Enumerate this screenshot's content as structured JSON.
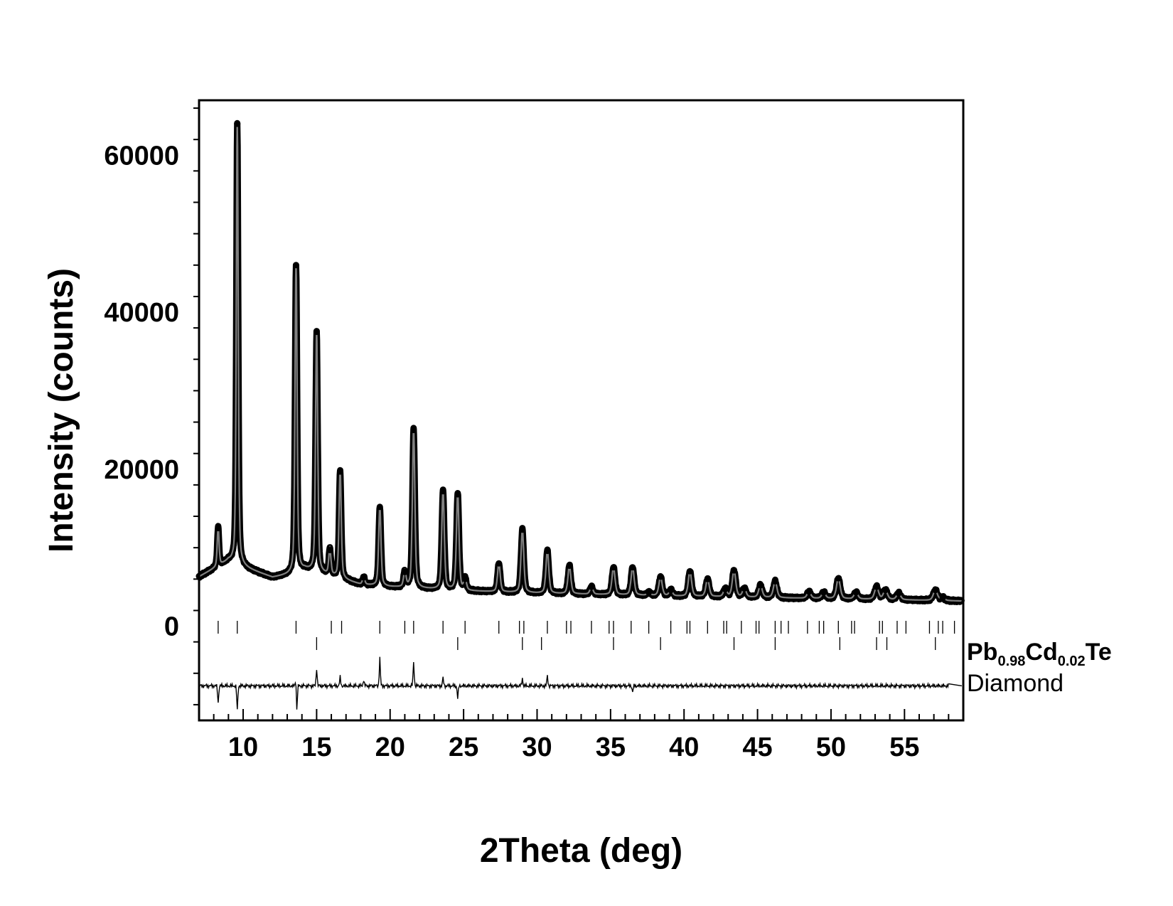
{
  "chart_data": {
    "type": "line",
    "xlabel": "2Theta (deg)",
    "ylabel": "Intensity (counts)",
    "xlim": [
      7,
      59
    ],
    "ylim": [
      -12000,
      67000
    ],
    "x_ticks": [
      "10",
      "15",
      "20",
      "25",
      "30",
      "35",
      "40",
      "45",
      "50",
      "55"
    ],
    "x_tick_values": [
      10,
      15,
      20,
      25,
      30,
      35,
      40,
      45,
      50,
      55
    ],
    "y_ticks": [
      "0",
      "20000",
      "40000",
      "60000"
    ],
    "y_tick_values": [
      0,
      20000,
      40000,
      60000
    ],
    "grid": false,
    "legend": "none",
    "background": {
      "points": [
        [
          7,
          6300
        ],
        [
          9,
          8300
        ],
        [
          10.5,
          7200
        ],
        [
          12,
          6200
        ],
        [
          13.3,
          6600
        ],
        [
          14.2,
          7200
        ],
        [
          16,
          6400
        ],
        [
          18,
          5300
        ],
        [
          20,
          5000
        ],
        [
          25,
          4500
        ],
        [
          30,
          4200
        ],
        [
          35,
          4000
        ],
        [
          40,
          3800
        ],
        [
          45,
          3650
        ],
        [
          50,
          3500
        ],
        [
          55,
          3350
        ],
        [
          59,
          3200
        ]
      ]
    },
    "peaks": [
      {
        "x": 8.3,
        "y": 12500
      },
      {
        "x": 9.6,
        "y": 64000
      },
      {
        "x": 13.6,
        "y": 46000
      },
      {
        "x": 15.0,
        "y": 37500
      },
      {
        "x": 15.9,
        "y": 9700
      },
      {
        "x": 16.6,
        "y": 19700
      },
      {
        "x": 18.2,
        "y": 6200
      },
      {
        "x": 19.3,
        "y": 15200
      },
      {
        "x": 21.0,
        "y": 6900
      },
      {
        "x": 21.6,
        "y": 25000
      },
      {
        "x": 23.6,
        "y": 17200
      },
      {
        "x": 24.6,
        "y": 16800
      },
      {
        "x": 25.1,
        "y": 6000
      },
      {
        "x": 27.4,
        "y": 8000
      },
      {
        "x": 29.0,
        "y": 12300
      },
      {
        "x": 30.7,
        "y": 9600
      },
      {
        "x": 32.2,
        "y": 7700
      },
      {
        "x": 33.7,
        "y": 5000
      },
      {
        "x": 35.2,
        "y": 7500
      },
      {
        "x": 36.5,
        "y": 7500
      },
      {
        "x": 37.6,
        "y": 4300
      },
      {
        "x": 38.4,
        "y": 6300
      },
      {
        "x": 39.1,
        "y": 4600
      },
      {
        "x": 40.4,
        "y": 7000
      },
      {
        "x": 41.6,
        "y": 6000
      },
      {
        "x": 42.8,
        "y": 4700
      },
      {
        "x": 43.4,
        "y": 7100
      },
      {
        "x": 44.1,
        "y": 4800
      },
      {
        "x": 45.2,
        "y": 5200
      },
      {
        "x": 46.2,
        "y": 5700
      },
      {
        "x": 48.5,
        "y": 4400
      },
      {
        "x": 49.5,
        "y": 4300
      },
      {
        "x": 50.5,
        "y": 6100
      },
      {
        "x": 51.7,
        "y": 4300
      },
      {
        "x": 53.1,
        "y": 5000
      },
      {
        "x": 53.7,
        "y": 4600
      },
      {
        "x": 54.6,
        "y": 4200
      },
      {
        "x": 57.1,
        "y": 4600
      },
      {
        "x": 57.6,
        "y": 3600
      }
    ],
    "series": [
      {
        "name": "Pb0.98Cd0.02Te",
        "reflections": [
          8.3,
          9.6,
          13.6,
          16.0,
          16.7,
          19.3,
          21.0,
          21.6,
          23.6,
          25.1,
          27.4,
          28.8,
          29.1,
          30.7,
          32.0,
          32.3,
          33.7,
          34.9,
          35.2,
          36.4,
          37.6,
          39.1,
          40.2,
          40.4,
          41.6,
          42.7,
          42.9,
          43.9,
          44.9,
          45.1,
          46.2,
          46.6,
          47.1,
          48.4,
          49.2,
          49.5,
          50.5,
          51.4,
          51.6,
          53.3,
          53.5,
          54.5,
          55.1,
          56.7,
          57.3,
          57.6,
          58.4
        ]
      },
      {
        "name": "Diamond",
        "reflections": [
          15.0,
          24.6,
          29.0,
          30.3,
          35.2,
          38.4,
          43.4,
          46.2,
          50.6,
          53.1,
          53.8,
          57.1
        ]
      }
    ],
    "difference_baseline": -7600,
    "difference_features": [
      {
        "x": 8.3,
        "y": -9800
      },
      {
        "x": 9.6,
        "y": -10800
      },
      {
        "x": 13.6,
        "y": -6200
      },
      {
        "x": 13.65,
        "y": -11200
      },
      {
        "x": 15.0,
        "y": -5300
      },
      {
        "x": 16.6,
        "y": -6500
      },
      {
        "x": 18.2,
        "y": -6800
      },
      {
        "x": 19.3,
        "y": -4000
      },
      {
        "x": 21.6,
        "y": -4500
      },
      {
        "x": 23.6,
        "y": -6600
      },
      {
        "x": 24.6,
        "y": -9200
      },
      {
        "x": 29.0,
        "y": -6600
      },
      {
        "x": 30.7,
        "y": -6300
      },
      {
        "x": 36.5,
        "y": -8400
      }
    ],
    "colors": {
      "observed": "#000000",
      "calculated": "#808080",
      "difference": "#000000",
      "reflections": "#000000"
    }
  },
  "labels": {
    "phase1": {
      "base": "Pb",
      "sub1": "0.98",
      "mid": "Cd",
      "sub2": "0.02",
      "end": "Te"
    },
    "phase2": "Diamond"
  }
}
